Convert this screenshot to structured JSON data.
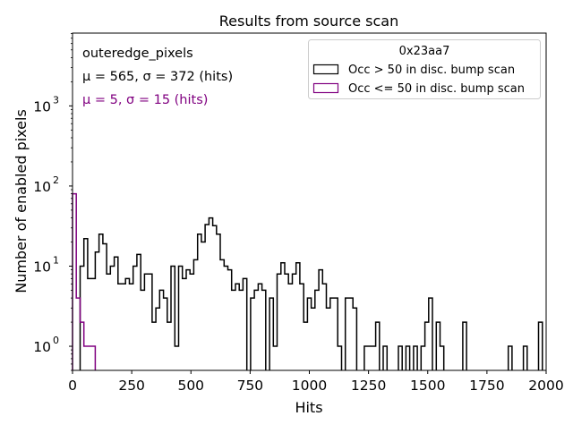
{
  "chart_data": {
    "type": "histogram-step",
    "title": "Results from source scan",
    "xlabel": "Hits",
    "ylabel": "Number of enabled pixels",
    "xlim": [
      0,
      2000
    ],
    "ylim": [
      0.5,
      8100
    ],
    "yscale": "log",
    "xticks": [
      0,
      250,
      500,
      750,
      1000,
      1250,
      1500,
      1750,
      2000
    ],
    "xtick_labels": [
      "0",
      "250",
      "500",
      "750",
      "1000",
      "1250",
      "1500",
      "1750",
      "2000"
    ],
    "yticks": [
      1,
      10,
      100,
      1000
    ],
    "ytick_labels": [
      "10",
      "10",
      "10",
      "10"
    ],
    "ytick_exponents": [
      "0",
      "1",
      "2",
      "3"
    ],
    "annotations": {
      "name": "outeredge_pixels",
      "stats_main": "μ = 565, σ = 372 (hits)",
      "stats_low": "μ = 5, σ = 15 (hits)"
    },
    "legend": {
      "title": "0x23aa7",
      "placement": "top-right",
      "entries": [
        "Occ > 50 in disc. bump scan",
        "Occ <= 50 in disc. bump scan"
      ]
    },
    "series": [
      {
        "name": "Occ > 50 in disc. bump scan",
        "color": "#000000",
        "bin_start": 32,
        "bin_width": 16,
        "counts": [
          10,
          22,
          7,
          7,
          15,
          25,
          19,
          8,
          10,
          13,
          6,
          6,
          7,
          6,
          10,
          14,
          5,
          8,
          8,
          2,
          3,
          5,
          4,
          2,
          10,
          1,
          10,
          7,
          9,
          8,
          12,
          25,
          20,
          33,
          40,
          32,
          25,
          12,
          10,
          9,
          5,
          6,
          5,
          7,
          0,
          4,
          5,
          6,
          5,
          0,
          4,
          1,
          8,
          11,
          8,
          6,
          8,
          11,
          6,
          2,
          4,
          3,
          5,
          9,
          6,
          3,
          4,
          4,
          1,
          0,
          4,
          4,
          3,
          0,
          0,
          1,
          1,
          1,
          2,
          0,
          1,
          0,
          0,
          0,
          1,
          0,
          1,
          0,
          1,
          0,
          1,
          2,
          4,
          0,
          2,
          1,
          0,
          0,
          0,
          0,
          0,
          2,
          0,
          0,
          0,
          0,
          0,
          0,
          0,
          0,
          0,
          0,
          0,
          1,
          0,
          0,
          0,
          1,
          0,
          0,
          0,
          2,
          0
        ]
      },
      {
        "name": "Occ <= 50 in disc. bump scan",
        "color": "#800080",
        "bin_start": 0,
        "bin_width": 16,
        "counts": [
          80,
          4,
          2,
          1,
          1,
          1
        ]
      }
    ]
  }
}
